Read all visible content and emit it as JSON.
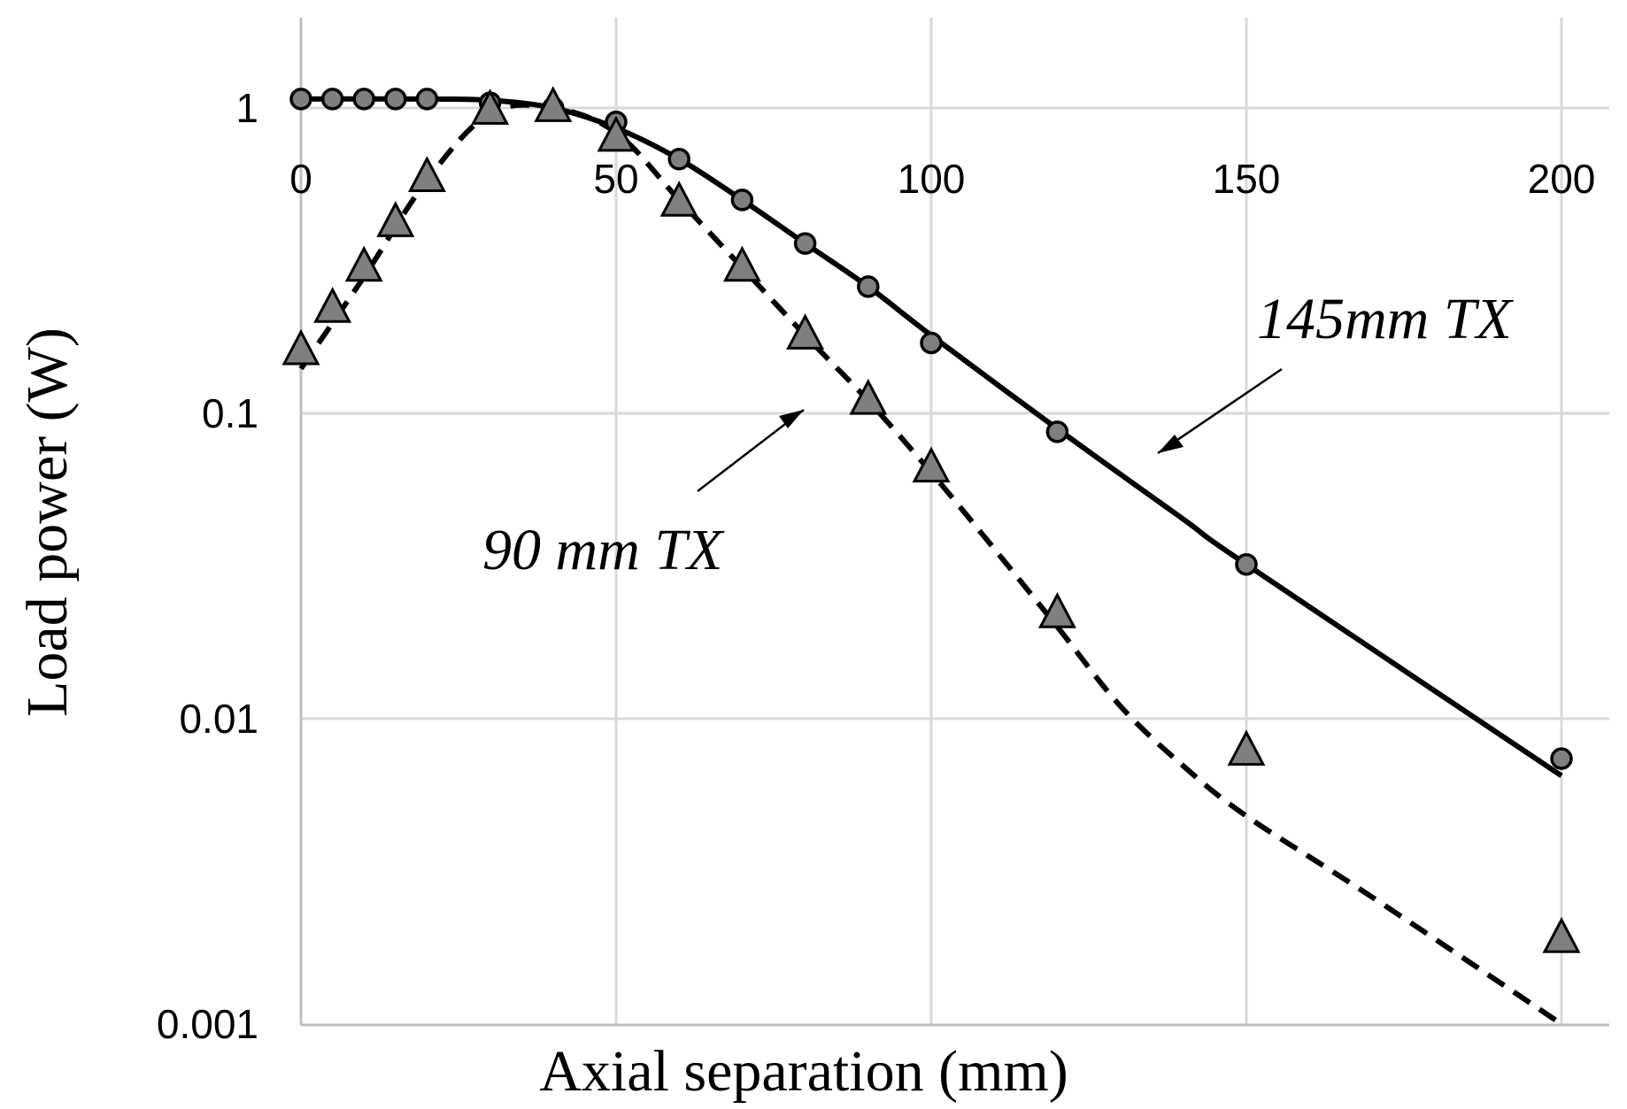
{
  "chart_data": {
    "type": "line",
    "xlabel": "Axial separation (mm)",
    "ylabel": "Load power (W)",
    "xlim": [
      0,
      210
    ],
    "ylim": [
      0.001,
      2
    ],
    "y_scale": "log",
    "grid": true,
    "x_ticks": [
      "0",
      "50",
      "100",
      "150",
      "200"
    ],
    "y_ticks": [
      "1",
      "0.1",
      "0.01",
      "0.001"
    ],
    "x_tick_values": [
      0,
      50,
      100,
      150,
      200
    ],
    "y_tick_values": [
      1,
      0.1,
      0.01,
      0.001
    ],
    "annotations": [
      {
        "text": "145mm TX",
        "target_series": "145mm"
      },
      {
        "text": "90 mm TX",
        "target_series": "90mm"
      }
    ],
    "series": [
      {
        "key": "145mm",
        "role": "measured",
        "marker": "circle",
        "color": "#7f7f7f",
        "x": [
          0,
          5,
          10,
          15,
          20,
          30,
          40,
          50,
          60,
          70,
          80,
          90,
          100,
          120,
          150,
          200
        ],
        "y": [
          1.07,
          1.07,
          1.07,
          1.07,
          1.07,
          1.04,
          1.0,
          0.9,
          0.68,
          0.5,
          0.36,
          0.26,
          0.17,
          0.087,
          0.032,
          0.0074
        ]
      },
      {
        "key": "145mm",
        "role": "simulated",
        "line": "solid",
        "color": "#000000",
        "x": [
          0,
          20,
          30,
          40,
          50,
          60,
          70,
          80,
          90,
          100,
          120,
          140,
          150,
          200
        ],
        "y": [
          1.07,
          1.07,
          1.06,
          1.0,
          0.86,
          0.68,
          0.5,
          0.36,
          0.26,
          0.18,
          0.089,
          0.045,
          0.032,
          0.0065
        ]
      },
      {
        "key": "90mm",
        "role": "measured",
        "marker": "triangle",
        "color": "#7f7f7f",
        "x": [
          0,
          5,
          10,
          15,
          20,
          30,
          40,
          50,
          60,
          70,
          80,
          90,
          100,
          120,
          150,
          200
        ],
        "y": [
          0.16,
          0.22,
          0.3,
          0.42,
          0.59,
          0.98,
          1.0,
          0.8,
          0.49,
          0.3,
          0.18,
          0.11,
          0.066,
          0.022,
          0.0078,
          0.0019
        ]
      },
      {
        "key": "90mm",
        "role": "simulated",
        "line": "dashed",
        "color": "#000000",
        "x": [
          0,
          10,
          20,
          30,
          40,
          50,
          60,
          70,
          80,
          90,
          100,
          110,
          120,
          130,
          140,
          150,
          170,
          200
        ],
        "y": [
          0.14,
          0.28,
          0.58,
          0.96,
          1.0,
          0.83,
          0.5,
          0.3,
          0.18,
          0.11,
          0.064,
          0.036,
          0.02,
          0.011,
          0.007,
          0.0048,
          0.0026,
          0.001
        ]
      }
    ]
  }
}
